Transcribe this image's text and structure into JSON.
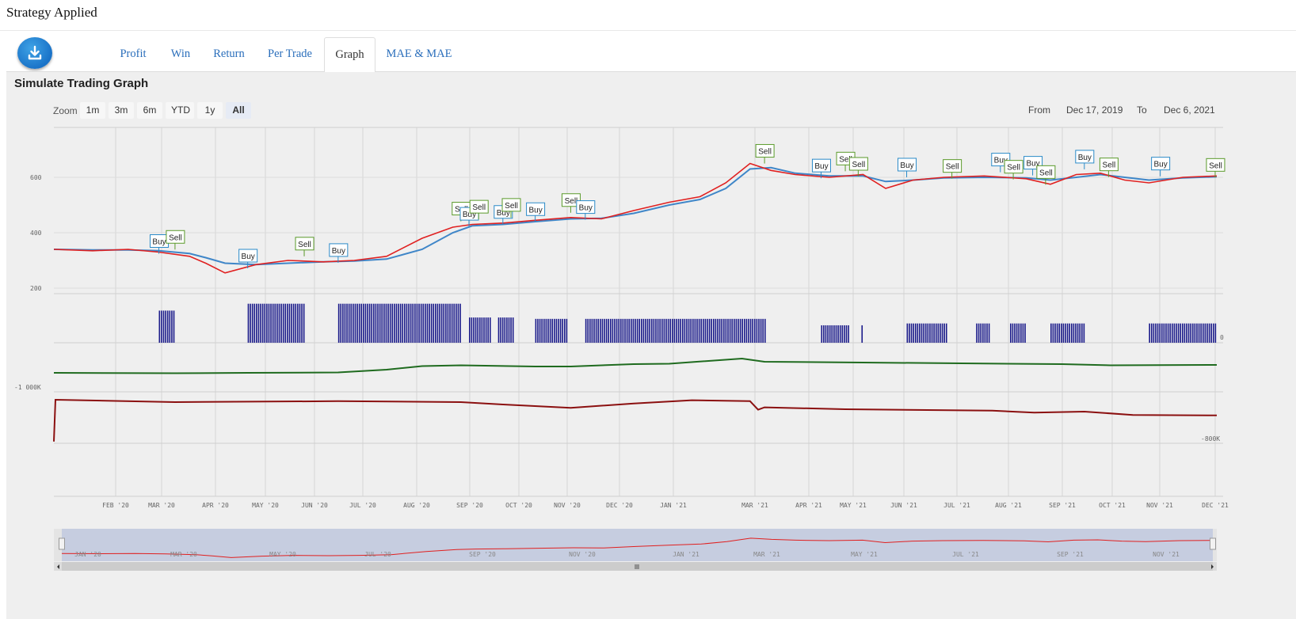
{
  "page": {
    "title": "Strategy Applied"
  },
  "tabs": [
    {
      "label": "Profit",
      "active": false
    },
    {
      "label": "Win",
      "active": false
    },
    {
      "label": "Return",
      "active": false
    },
    {
      "label": "Per Trade",
      "active": false
    },
    {
      "label": "Graph",
      "active": true
    },
    {
      "label": "MAE & MAE",
      "active": false
    }
  ],
  "panel": {
    "title": "Simulate Trading Graph",
    "zoom": {
      "label": "Zoom",
      "buttons": [
        "1m",
        "3m",
        "6m",
        "YTD",
        "1y",
        "All"
      ],
      "selected": "All"
    },
    "range": {
      "from_label": "From",
      "from_value": "Dec 17, 2019",
      "to_label": "To",
      "to_value": "Dec 6, 2021"
    }
  },
  "colors": {
    "price_line": "#e02020",
    "ma_line": "#3f86c8",
    "position_bars": "#1a1a8a",
    "equity_line": "#1f6b1f",
    "drawdown_line": "#8b1010",
    "buy_flag": "#2a8ac8",
    "sell_flag": "#5a9a2a",
    "navigator_fill": "#c6cde0"
  },
  "chart_data": {
    "type": "line",
    "x_axis_labels": [
      "FEB '20",
      "MAR '20",
      "APR '20",
      "MAY '20",
      "JUN '20",
      "JUL '20",
      "AUG '20",
      "SEP '20",
      "OCT '20",
      "NOV '20",
      "DEC '20",
      "JAN '21",
      "MAR '21",
      "APR '21",
      "MAY '21",
      "JUN '21",
      "JUL '21",
      "AUG '21",
      "SEP '21",
      "OCT '21",
      "NOV '21",
      "DEC '21"
    ],
    "price_axis": {
      "ticks": [
        200,
        400,
        600
      ],
      "ylim": [
        180,
        780
      ]
    },
    "position_axis": {
      "ticks": [
        0
      ]
    },
    "equity_axis": {
      "ticks": [
        "-1 000K"
      ]
    },
    "drawdown_axis": {
      "ticks": [
        "-800K"
      ]
    },
    "price_series": {
      "dates": [
        "2019-12-17",
        "2020-01-10",
        "2020-02-01",
        "2020-02-20",
        "2020-03-10",
        "2020-03-20",
        "2020-04-01",
        "2020-04-20",
        "2020-05-10",
        "2020-06-01",
        "2020-06-20",
        "2020-07-10",
        "2020-08-01",
        "2020-08-20",
        "2020-09-01",
        "2020-09-20",
        "2020-10-10",
        "2020-11-01",
        "2020-11-20",
        "2020-12-10",
        "2021-01-01",
        "2021-01-20",
        "2021-02-05",
        "2021-02-20",
        "2021-03-05",
        "2021-03-20",
        "2021-04-10",
        "2021-05-01",
        "2021-05-15",
        "2021-06-01",
        "2021-06-20",
        "2021-07-15",
        "2021-08-10",
        "2021-08-25",
        "2021-09-10",
        "2021-09-25",
        "2021-10-10",
        "2021-10-25",
        "2021-11-15",
        "2021-12-06"
      ],
      "close": [
        340,
        335,
        340,
        330,
        315,
        290,
        255,
        285,
        300,
        295,
        300,
        315,
        380,
        420,
        430,
        435,
        445,
        455,
        450,
        480,
        510,
        530,
        580,
        650,
        625,
        610,
        600,
        610,
        560,
        590,
        600,
        605,
        595,
        575,
        610,
        615,
        590,
        580,
        600,
        605
      ],
      "ma": [
        340,
        338,
        338,
        335,
        325,
        310,
        290,
        285,
        290,
        295,
        298,
        305,
        340,
        400,
        425,
        430,
        440,
        450,
        452,
        470,
        500,
        520,
        560,
        630,
        635,
        615,
        605,
        605,
        585,
        590,
        598,
        600,
        598,
        590,
        600,
        610,
        600,
        590,
        598,
        602
      ]
    },
    "signals": [
      {
        "label": "Buy",
        "date": "2020-02-20"
      },
      {
        "label": "Sell",
        "date": "2020-03-01"
      },
      {
        "label": "Buy",
        "date": "2020-04-15"
      },
      {
        "label": "Sell",
        "date": "2020-05-20"
      },
      {
        "label": "Buy",
        "date": "2020-06-10"
      },
      {
        "label": "Sell",
        "date": "2020-08-25"
      },
      {
        "label": "Buy",
        "date": "2020-08-30"
      },
      {
        "label": "Sell",
        "date": "2020-09-05"
      },
      {
        "label": "Buy",
        "date": "2020-09-20"
      },
      {
        "label": "Sell",
        "date": "2020-09-25"
      },
      {
        "label": "Buy",
        "date": "2020-10-10"
      },
      {
        "label": "Sell",
        "date": "2020-11-01"
      },
      {
        "label": "Buy",
        "date": "2020-11-10"
      },
      {
        "label": "Sell",
        "date": "2021-03-01"
      },
      {
        "label": "Buy",
        "date": "2021-04-05"
      },
      {
        "label": "Sell",
        "date": "2021-04-20"
      },
      {
        "label": "Sell",
        "date": "2021-04-28"
      },
      {
        "label": "Buy",
        "date": "2021-05-28"
      },
      {
        "label": "Sell",
        "date": "2021-06-25"
      },
      {
        "label": "Buy",
        "date": "2021-07-25"
      },
      {
        "label": "Sell",
        "date": "2021-08-02"
      },
      {
        "label": "Buy",
        "date": "2021-08-14"
      },
      {
        "label": "Sell",
        "date": "2021-08-22"
      },
      {
        "label": "Buy",
        "date": "2021-09-15"
      },
      {
        "label": "Sell",
        "date": "2021-09-30"
      },
      {
        "label": "Buy",
        "date": "2021-11-01"
      },
      {
        "label": "Sell",
        "date": "2021-12-05"
      }
    ],
    "position_bars": [
      {
        "start": "2020-02-20",
        "end": "2020-03-01",
        "level": 0.7
      },
      {
        "start": "2020-04-15",
        "end": "2020-05-20",
        "level": 0.85
      },
      {
        "start": "2020-06-10",
        "end": "2020-08-25",
        "level": 0.85
      },
      {
        "start": "2020-08-30",
        "end": "2020-09-12",
        "level": 0.55
      },
      {
        "start": "2020-09-17",
        "end": "2020-09-27",
        "level": 0.55
      },
      {
        "start": "2020-10-10",
        "end": "2020-10-30",
        "level": 0.52
      },
      {
        "start": "2020-11-10",
        "end": "2021-03-01",
        "level": 0.52
      },
      {
        "start": "2021-04-05",
        "end": "2021-04-22",
        "level": 0.38
      },
      {
        "start": "2021-04-30",
        "end": "2021-05-01",
        "level": 0.38
      },
      {
        "start": "2021-05-28",
        "end": "2021-06-22",
        "level": 0.42
      },
      {
        "start": "2021-07-10",
        "end": "2021-07-18",
        "level": 0.42
      },
      {
        "start": "2021-07-31",
        "end": "2021-08-10",
        "level": 0.42
      },
      {
        "start": "2021-08-25",
        "end": "2021-09-15",
        "level": 0.42
      },
      {
        "start": "2021-10-25",
        "end": "2021-12-05",
        "level": 0.42
      }
    ],
    "equity_series": {
      "dates": [
        "2019-12-17",
        "2020-03-01",
        "2020-04-15",
        "2020-06-10",
        "2020-07-10",
        "2020-08-01",
        "2020-08-25",
        "2020-10-10",
        "2020-11-01",
        "2020-12-10",
        "2021-01-01",
        "2021-02-15",
        "2021-03-01",
        "2021-05-01",
        "2021-07-01",
        "2021-09-01",
        "2021-10-01",
        "2021-12-06"
      ],
      "value": [
        0.0,
        -0.1,
        0.0,
        0.1,
        0.8,
        1.7,
        1.9,
        1.6,
        1.6,
        2.2,
        2.3,
        3.6,
        2.8,
        2.6,
        2.4,
        2.2,
        1.9,
        2.0
      ]
    },
    "drawdown_series": {
      "dates": [
        "2019-12-17",
        "2019-12-18",
        "2020-03-01",
        "2020-06-10",
        "2020-08-25",
        "2020-09-20",
        "2020-11-01",
        "2020-12-10",
        "2021-01-15",
        "2021-02-20",
        "2021-02-25",
        "2021-03-01",
        "2021-04-20",
        "2021-07-20",
        "2021-08-15",
        "2021-09-15",
        "2021-10-15",
        "2021-12-06"
      ],
      "value": [
        -8.8,
        0.0,
        -0.5,
        -0.3,
        -0.5,
        -1.0,
        -1.7,
        -0.8,
        -0.1,
        -0.3,
        -2.1,
        -1.6,
        -2.0,
        -2.3,
        -2.7,
        -2.5,
        -3.2,
        -3.3
      ]
    },
    "navigator": {
      "labels": [
        "JAN '20",
        "MAR '20",
        "MAY '20",
        "JUL '20",
        "SEP '20",
        "NOV '20",
        "JAN '21",
        "MAR '21",
        "MAY '21",
        "JUL '21",
        "SEP '21",
        "NOV '21"
      ]
    }
  }
}
